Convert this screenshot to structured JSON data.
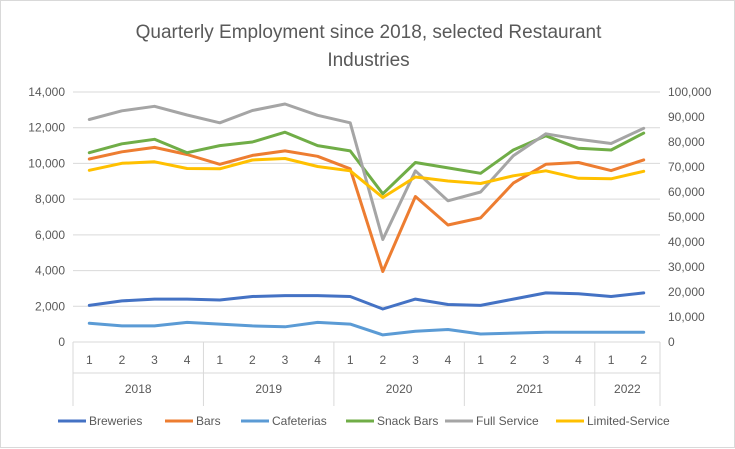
{
  "chart_data": {
    "type": "line",
    "title": "Quarterly Employment since 2018, selected Restaurant\nIndustries",
    "categories": [
      "1",
      "2",
      "3",
      "4",
      "1",
      "2",
      "3",
      "4",
      "1",
      "2",
      "3",
      "4",
      "1",
      "2",
      "3",
      "4",
      "1",
      "2"
    ],
    "years": [
      {
        "label": "2018",
        "start": 0,
        "end": 3
      },
      {
        "label": "2019",
        "start": 4,
        "end": 7
      },
      {
        "label": "2020",
        "start": 8,
        "end": 11
      },
      {
        "label": "2021",
        "start": 12,
        "end": 15
      },
      {
        "label": "2022",
        "start": 16,
        "end": 17
      }
    ],
    "ylim_left": [
      0,
      14000
    ],
    "ylim_right": [
      0,
      100000
    ],
    "left_ticks": [
      "0",
      "2,000",
      "4,000",
      "6,000",
      "8,000",
      "10,000",
      "12,000",
      "14,000"
    ],
    "right_ticks": [
      "0",
      "10,000",
      "20,000",
      "30,000",
      "40,000",
      "50,000",
      "60,000",
      "70,000",
      "80,000",
      "90,000",
      "100,000"
    ],
    "legend_position": "bottom",
    "grid": true,
    "series": [
      {
        "name": "Breweries",
        "axis": "left",
        "color": "#4472C4",
        "values": [
          2050,
          2300,
          2400,
          2400,
          2350,
          2550,
          2600,
          2600,
          2550,
          1850,
          2400,
          2100,
          2050,
          2400,
          2750,
          2700,
          2550,
          2750
        ]
      },
      {
        "name": "Bars",
        "axis": "left",
        "color": "#ED7D31",
        "values": [
          10250,
          10650,
          10900,
          10500,
          9950,
          10450,
          10700,
          10400,
          9700,
          3950,
          8150,
          6550,
          6950,
          8900,
          9950,
          10050,
          9600,
          10200
        ]
      },
      {
        "name": "Cafeterias",
        "axis": "left",
        "color": "#5B9BD5",
        "values": [
          1050,
          900,
          900,
          1100,
          1000,
          900,
          850,
          1100,
          1000,
          400,
          600,
          700,
          450,
          500,
          550,
          550,
          550,
          550
        ]
      },
      {
        "name": "Snack Bars",
        "axis": "left",
        "color": "#70AD47",
        "values": [
          10600,
          11100,
          11350,
          10600,
          11000,
          11200,
          11750,
          11000,
          10700,
          8300,
          10050,
          9750,
          9450,
          10750,
          11550,
          10850,
          10750,
          11700
        ]
      },
      {
        "name": "Full Service",
        "axis": "right",
        "color": "#A5A5A5",
        "values": [
          89000,
          92500,
          94300,
          90800,
          87700,
          92600,
          95200,
          90700,
          87700,
          41000,
          68500,
          56500,
          60000,
          74500,
          83300,
          81100,
          79400,
          85500
        ]
      },
      {
        "name": "Limited-Service",
        "axis": "right",
        "color": "#FFC000",
        "values": [
          68700,
          71500,
          72100,
          69400,
          69300,
          72800,
          73400,
          70200,
          68500,
          57800,
          66000,
          64400,
          63400,
          66500,
          68500,
          65500,
          65300,
          68300
        ]
      }
    ]
  }
}
